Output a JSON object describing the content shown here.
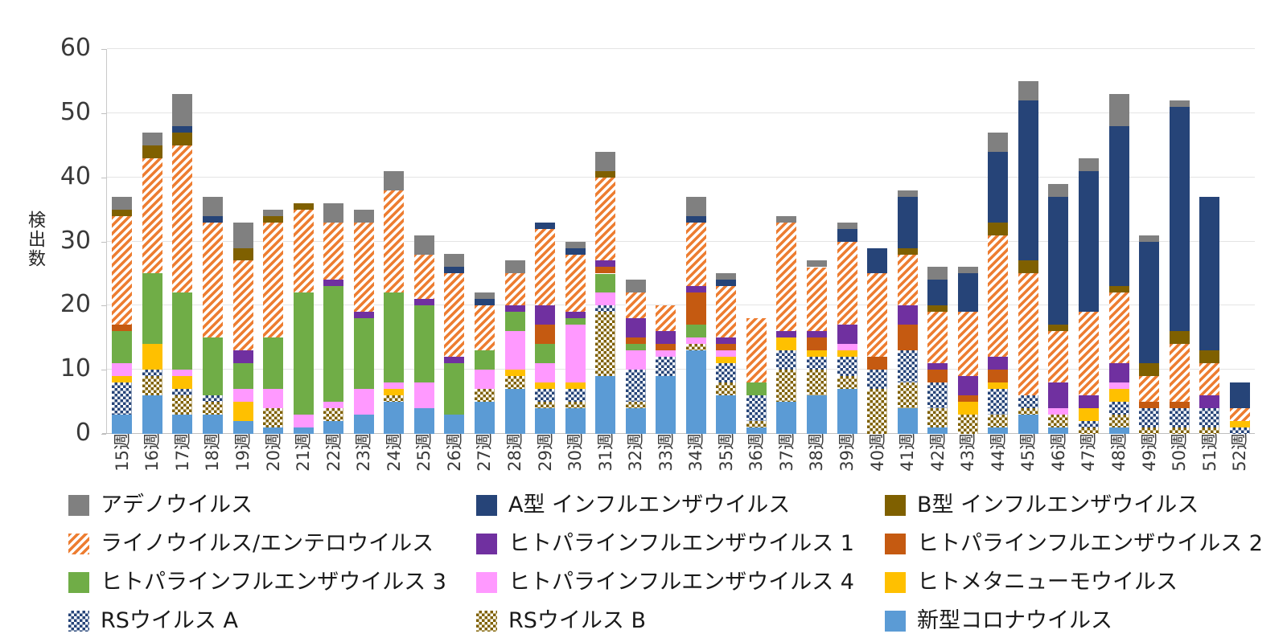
{
  "chart_data": {
    "type": "bar",
    "stacked": true,
    "title": "",
    "xlabel": "",
    "ylabel": "検出数",
    "ylim": [
      0,
      60
    ],
    "yticks": [
      0,
      10,
      20,
      30,
      40,
      50,
      60
    ],
    "grid": true,
    "legend_position": "bottom",
    "legend_columns": 3,
    "legend_order": "reverse-of-stack-row-major",
    "categories": [
      "15週",
      "16週",
      "17週",
      "18週",
      "19週",
      "20週",
      "21週",
      "22週",
      "23週",
      "24週",
      "25週",
      "26週",
      "27週",
      "28週",
      "29週",
      "30週",
      "31週",
      "32週",
      "33週",
      "34週",
      "35週",
      "36週",
      "37週",
      "38週",
      "39週",
      "40週",
      "41週",
      "42週",
      "43週",
      "44週",
      "45週",
      "46週",
      "47週",
      "48週",
      "49週",
      "50週",
      "51週",
      "52週"
    ],
    "series": [
      {
        "label": "新型コロナウイルス",
        "color": "#5B9BD5",
        "fill": "solid",
        "values": [
          3,
          6,
          3,
          3,
          2,
          1,
          1,
          2,
          3,
          5,
          4,
          3,
          5,
          7,
          4,
          4,
          9,
          4,
          9,
          13,
          6,
          1,
          5,
          6,
          7,
          0,
          4,
          1,
          0,
          1,
          3,
          1,
          0,
          1,
          0,
          0,
          0,
          0
        ]
      },
      {
        "label": "RSウイルス B",
        "color": "#7F6000",
        "fill": "check",
        "values": [
          0,
          3,
          3,
          2,
          0,
          3,
          0,
          2,
          0,
          1,
          0,
          0,
          2,
          2,
          1,
          1,
          10,
          1,
          0,
          1,
          2,
          1,
          5,
          4,
          2,
          7,
          4,
          3,
          3,
          2,
          1,
          2,
          1,
          2,
          1,
          1,
          1,
          0
        ]
      },
      {
        "label": "RSウイルス A",
        "color": "#264478",
        "fill": "check",
        "values": [
          5,
          1,
          1,
          1,
          0,
          0,
          0,
          0,
          0,
          0,
          0,
          0,
          0,
          0,
          2,
          2,
          1,
          5,
          3,
          0,
          3,
          4,
          3,
          2,
          3,
          3,
          5,
          4,
          0,
          4,
          2,
          0,
          1,
          2,
          3,
          3,
          3,
          1
        ]
      },
      {
        "label": "ヒトメタニューモウイルス",
        "color": "#FFC000",
        "fill": "solid",
        "values": [
          1,
          4,
          2,
          0,
          3,
          0,
          0,
          0,
          0,
          1,
          0,
          0,
          0,
          1,
          1,
          1,
          0,
          0,
          0,
          0,
          1,
          0,
          2,
          1,
          1,
          0,
          0,
          0,
          2,
          1,
          0,
          0,
          2,
          2,
          0,
          0,
          0,
          1
        ]
      },
      {
        "label": "ヒトパラインフルエンザウイルス 4",
        "color": "#FF99FF",
        "fill": "solid",
        "values": [
          2,
          0,
          1,
          0,
          2,
          3,
          2,
          1,
          4,
          1,
          4,
          0,
          3,
          6,
          3,
          9,
          2,
          3,
          1,
          1,
          1,
          0,
          0,
          0,
          1,
          0,
          0,
          0,
          0,
          0,
          0,
          1,
          0,
          1,
          0,
          0,
          0,
          0
        ]
      },
      {
        "label": "ヒトパラインフルエンザウイルス 3",
        "color": "#70AD47",
        "fill": "solid",
        "values": [
          5,
          11,
          12,
          9,
          4,
          8,
          19,
          18,
          11,
          14,
          12,
          8,
          3,
          3,
          3,
          1,
          3,
          1,
          0,
          2,
          0,
          2,
          0,
          0,
          0,
          0,
          0,
          0,
          0,
          0,
          0,
          0,
          0,
          0,
          0,
          0,
          0,
          0
        ]
      },
      {
        "label": "ヒトパラインフルエンザウイルス 2",
        "color": "#C55A11",
        "fill": "solid",
        "values": [
          1,
          0,
          0,
          0,
          0,
          0,
          0,
          0,
          0,
          0,
          0,
          0,
          0,
          0,
          3,
          0,
          1,
          1,
          1,
          5,
          1,
          0,
          0,
          2,
          0,
          2,
          4,
          2,
          1,
          2,
          0,
          0,
          0,
          0,
          1,
          1,
          0,
          0
        ]
      },
      {
        "label": "ヒトパラインフルエンザウイルス 1",
        "color": "#7030A0",
        "fill": "solid",
        "values": [
          0,
          0,
          0,
          0,
          2,
          0,
          0,
          1,
          1,
          0,
          1,
          1,
          0,
          1,
          3,
          1,
          1,
          3,
          2,
          1,
          1,
          0,
          1,
          1,
          3,
          0,
          3,
          1,
          3,
          2,
          0,
          4,
          2,
          3,
          0,
          0,
          2,
          0
        ]
      },
      {
        "label": "ライノウイルス/エンテロウイルス",
        "color": "#ED7D31",
        "fill": "stripe",
        "values": [
          17,
          18,
          23,
          18,
          14,
          18,
          13,
          9,
          14,
          16,
          7,
          13,
          7,
          5,
          12,
          9,
          13,
          4,
          4,
          10,
          8,
          10,
          17,
          10,
          13,
          13,
          8,
          8,
          10,
          19,
          19,
          8,
          13,
          11,
          4,
          9,
          5,
          2
        ]
      },
      {
        "label": "B型 インフルエンザウイルス",
        "color": "#7F6000",
        "fill": "solid",
        "values": [
          1,
          2,
          2,
          0,
          2,
          1,
          1,
          0,
          0,
          0,
          0,
          0,
          0,
          0,
          0,
          0,
          1,
          0,
          0,
          0,
          0,
          0,
          0,
          0,
          0,
          0,
          1,
          1,
          0,
          2,
          2,
          1,
          0,
          1,
          2,
          2,
          2,
          0
        ]
      },
      {
        "label": "A型 インフルエンザウイルス",
        "color": "#264478",
        "fill": "solid",
        "values": [
          0,
          0,
          1,
          1,
          0,
          0,
          0,
          0,
          0,
          0,
          0,
          1,
          1,
          0,
          1,
          1,
          0,
          0,
          0,
          1,
          1,
          0,
          0,
          0,
          2,
          4,
          8,
          4,
          6,
          11,
          25,
          20,
          22,
          25,
          19,
          35,
          24,
          4
        ]
      },
      {
        "label": "アデノウイルス",
        "color": "#808080",
        "fill": "solid",
        "values": [
          2,
          2,
          5,
          3,
          4,
          1,
          0,
          3,
          2,
          3,
          3,
          2,
          1,
          2,
          0,
          1,
          3,
          2,
          0,
          3,
          1,
          0,
          1,
          1,
          1,
          0,
          1,
          2,
          1,
          3,
          3,
          2,
          2,
          5,
          1,
          1,
          0,
          0
        ]
      }
    ]
  }
}
